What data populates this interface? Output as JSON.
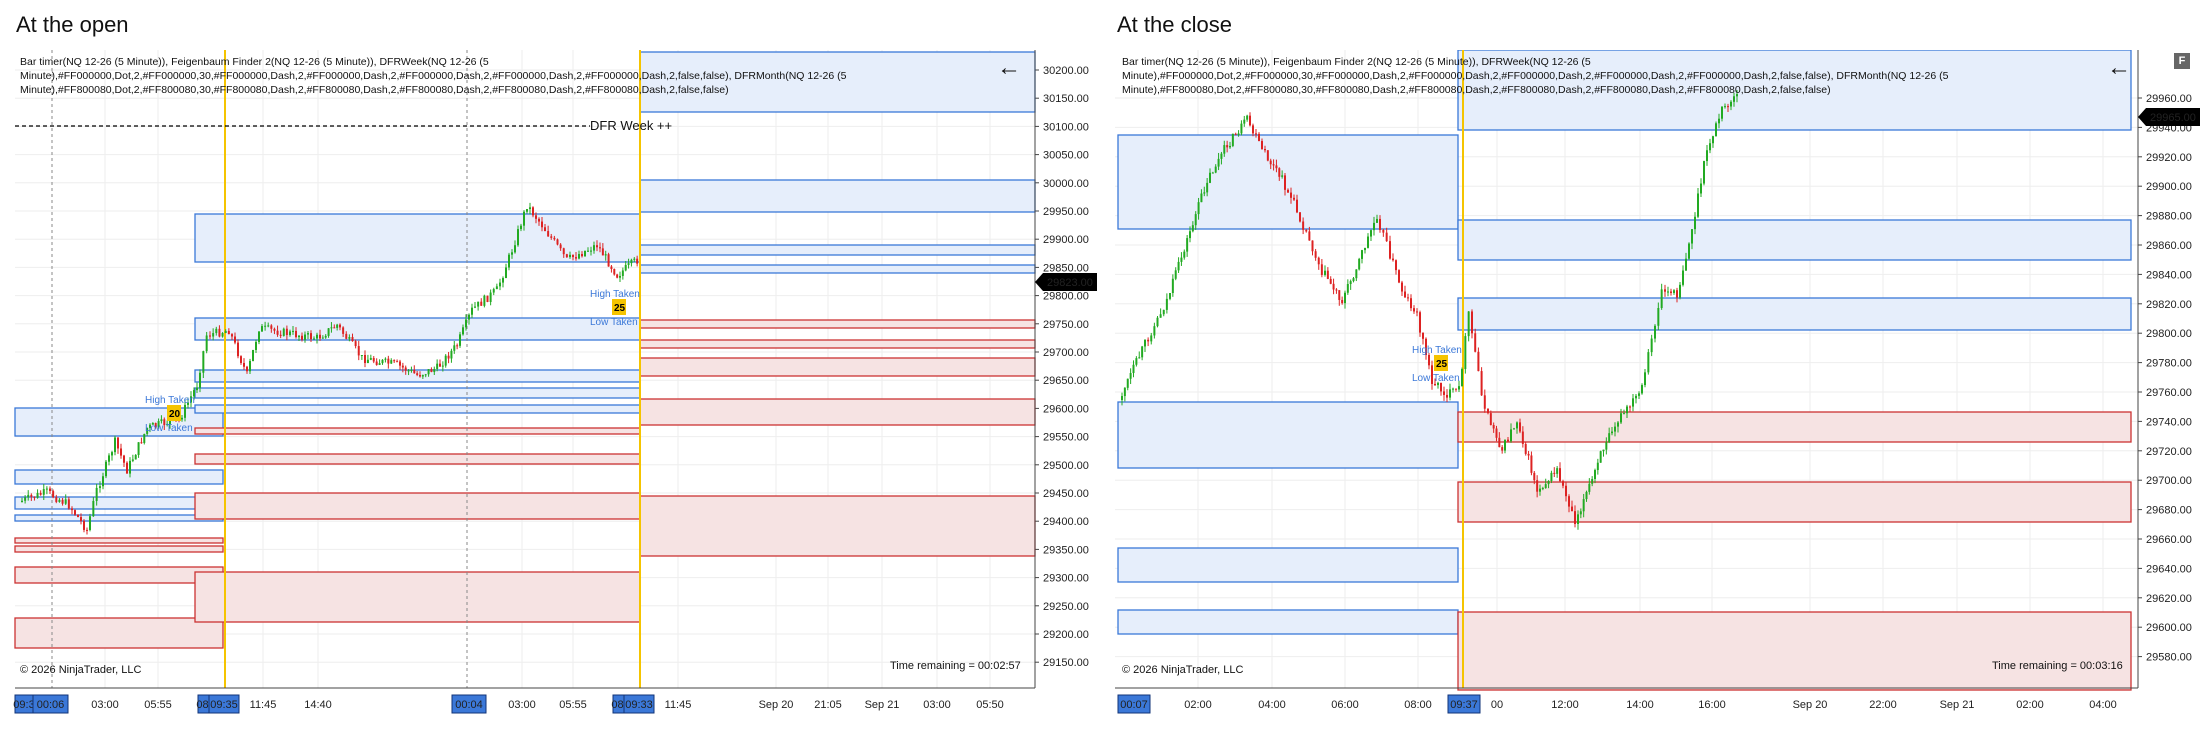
{
  "left_panel": {
    "title": "At the open",
    "indicator_text": "Bar timer(NQ 12-26 (5 Minute)), Feigenbaum Finder 2(NQ 12-26 (5 Minute)), DFRWeek(NQ 12-26 (5 Minute),#FF000000,Dot,2,#FF000000,30,#FF000000,Dash,2,#FF000000,Dash,2,#FF000000,Dash,2,#FF000000,Dash,2,#FF000000,Dash,2,false,false), DFRMonth(NQ 12-26 (5 Minute),#FF800080,Dot,2,#FF800080,30,#FF800080,Dash,2,#FF800080,Dash,2,#FF800080,Dash,2,#FF800080,Dash,2,#FF800080,Dash,2,false,false)",
    "dfr_label": "DFR Week ++",
    "copyright": "© 2026 NinjaTrader, LLC",
    "time_remaining": "Time remaining = 00:02:57",
    "price_marker": "29823.00",
    "y_ticks": [
      "30200.00",
      "30150.00",
      "30100.00",
      "30050.00",
      "30000.00",
      "29950.00",
      "29900.00",
      "29850.00",
      "29800.00",
      "29750.00",
      "29700.00",
      "29650.00",
      "29600.00",
      "29550.00",
      "29500.00",
      "29450.00",
      "29400.00",
      "29350.00",
      "29300.00",
      "29250.00",
      "29200.00",
      "29150.00"
    ],
    "x_ticks": [
      "03:00",
      "05:55",
      "11:45",
      "14:40",
      "03:00",
      "05:55",
      "11:45",
      "Sep 20",
      "21:05",
      "Sep 21",
      "03:00",
      "05:50"
    ],
    "x_highlights": [
      "09:3",
      "00:06",
      "08:",
      "09:35",
      "00:04",
      "08:",
      "09:33"
    ],
    "markers": [
      {
        "high": "High Taken",
        "low": "Low Taken",
        "num": "20"
      },
      {
        "high": "High Taken",
        "low": "Low Taken",
        "num": "25"
      }
    ]
  },
  "right_panel": {
    "title": "At the close",
    "indicator_text": "Bar timer(NQ 12-26 (5 Minute)), Feigenbaum Finder 2(NQ 12-26 (5 Minute)), DFRWeek(NQ 12-26 (5 Minute),#FF000000,Dot,2,#FF000000,30,#FF000000,Dash,2,#FF000000,Dash,2,#FF000000,Dash,2,#FF000000,Dash,2,#FF000000,Dash,2,false,false), DFRMonth(NQ 12-26 (5 Minute),#FF800080,Dot,2,#FF800080,30,#FF800080,Dash,2,#FF800080,Dash,2,#FF800080,Dash,2,#FF800080,Dash,2,#FF800080,Dash,2,false,false)",
    "copyright": "© 2026 NinjaTrader, LLC",
    "time_remaining": "Time remaining = 00:03:16",
    "price_marker": "29965.00",
    "f_badge": "F",
    "y_ticks": [
      "29960.00",
      "29940.00",
      "29920.00",
      "29900.00",
      "29880.00",
      "29860.00",
      "29840.00",
      "29820.00",
      "29800.00",
      "29780.00",
      "29760.00",
      "29740.00",
      "29720.00",
      "29700.00",
      "29680.00",
      "29660.00",
      "29640.00",
      "29620.00",
      "29600.00",
      "29580.00"
    ],
    "x_ticks": [
      "02:00",
      "04:00",
      "06:00",
      "08:00",
      "00",
      "12:00",
      "14:00",
      "16:00",
      "Sep 20",
      "22:00",
      "Sep 21",
      "02:00",
      "04:00"
    ],
    "x_highlights": [
      "00:07",
      "09:37"
    ],
    "markers": [
      {
        "high": "High Taken",
        "low": "Low Taken",
        "num": "25"
      }
    ]
  },
  "colors": {
    "blue_zone_fill": "#e6eefb",
    "blue_zone_stroke": "#3b78d8",
    "red_zone_fill": "#f6e3e3",
    "red_zone_stroke": "#cc3333",
    "session_line": "#f5c400",
    "up_candle": "#22aa22",
    "down_candle": "#dd2222",
    "axis_highlight": "#3b78d8"
  }
}
